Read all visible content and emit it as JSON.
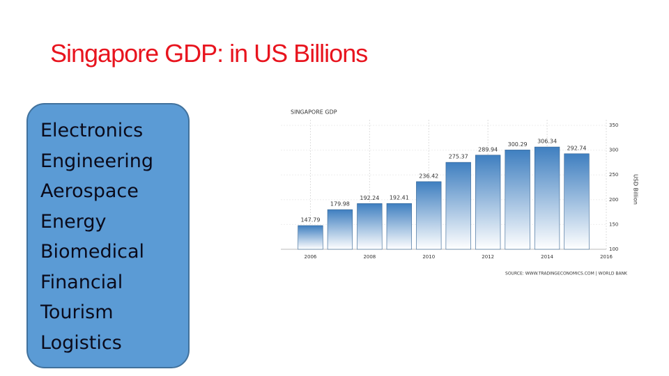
{
  "title": "Singapore GDP: in US Billions",
  "list": {
    "items": [
      "Electronics",
      "Engineering",
      "Aerospace",
      "Energy",
      "Biomedical",
      "Financial",
      "Tourism",
      "Logistics"
    ]
  },
  "chart_data": {
    "type": "bar",
    "title": "SINGAPORE GDP",
    "ylabel": "USD Billion",
    "source": "SOURCE: WWW.TRADINGECONOMICS.COM | WORLD BANK",
    "x": [
      2006,
      2007,
      2008,
      2009,
      2010,
      2011,
      2012,
      2013,
      2014,
      2015
    ],
    "values": [
      147.79,
      179.98,
      192.24,
      192.41,
      236.42,
      275.37,
      289.94,
      300.29,
      306.34,
      292.74
    ],
    "color": "#3f7fc0",
    "xlim": [
      2005,
      2016
    ],
    "xticks": [
      2006,
      2008,
      2010,
      2012,
      2014,
      2016
    ],
    "ylim": [
      100,
      350
    ],
    "yticks": [
      100,
      150,
      200,
      250,
      300,
      350
    ],
    "grid": true
  }
}
